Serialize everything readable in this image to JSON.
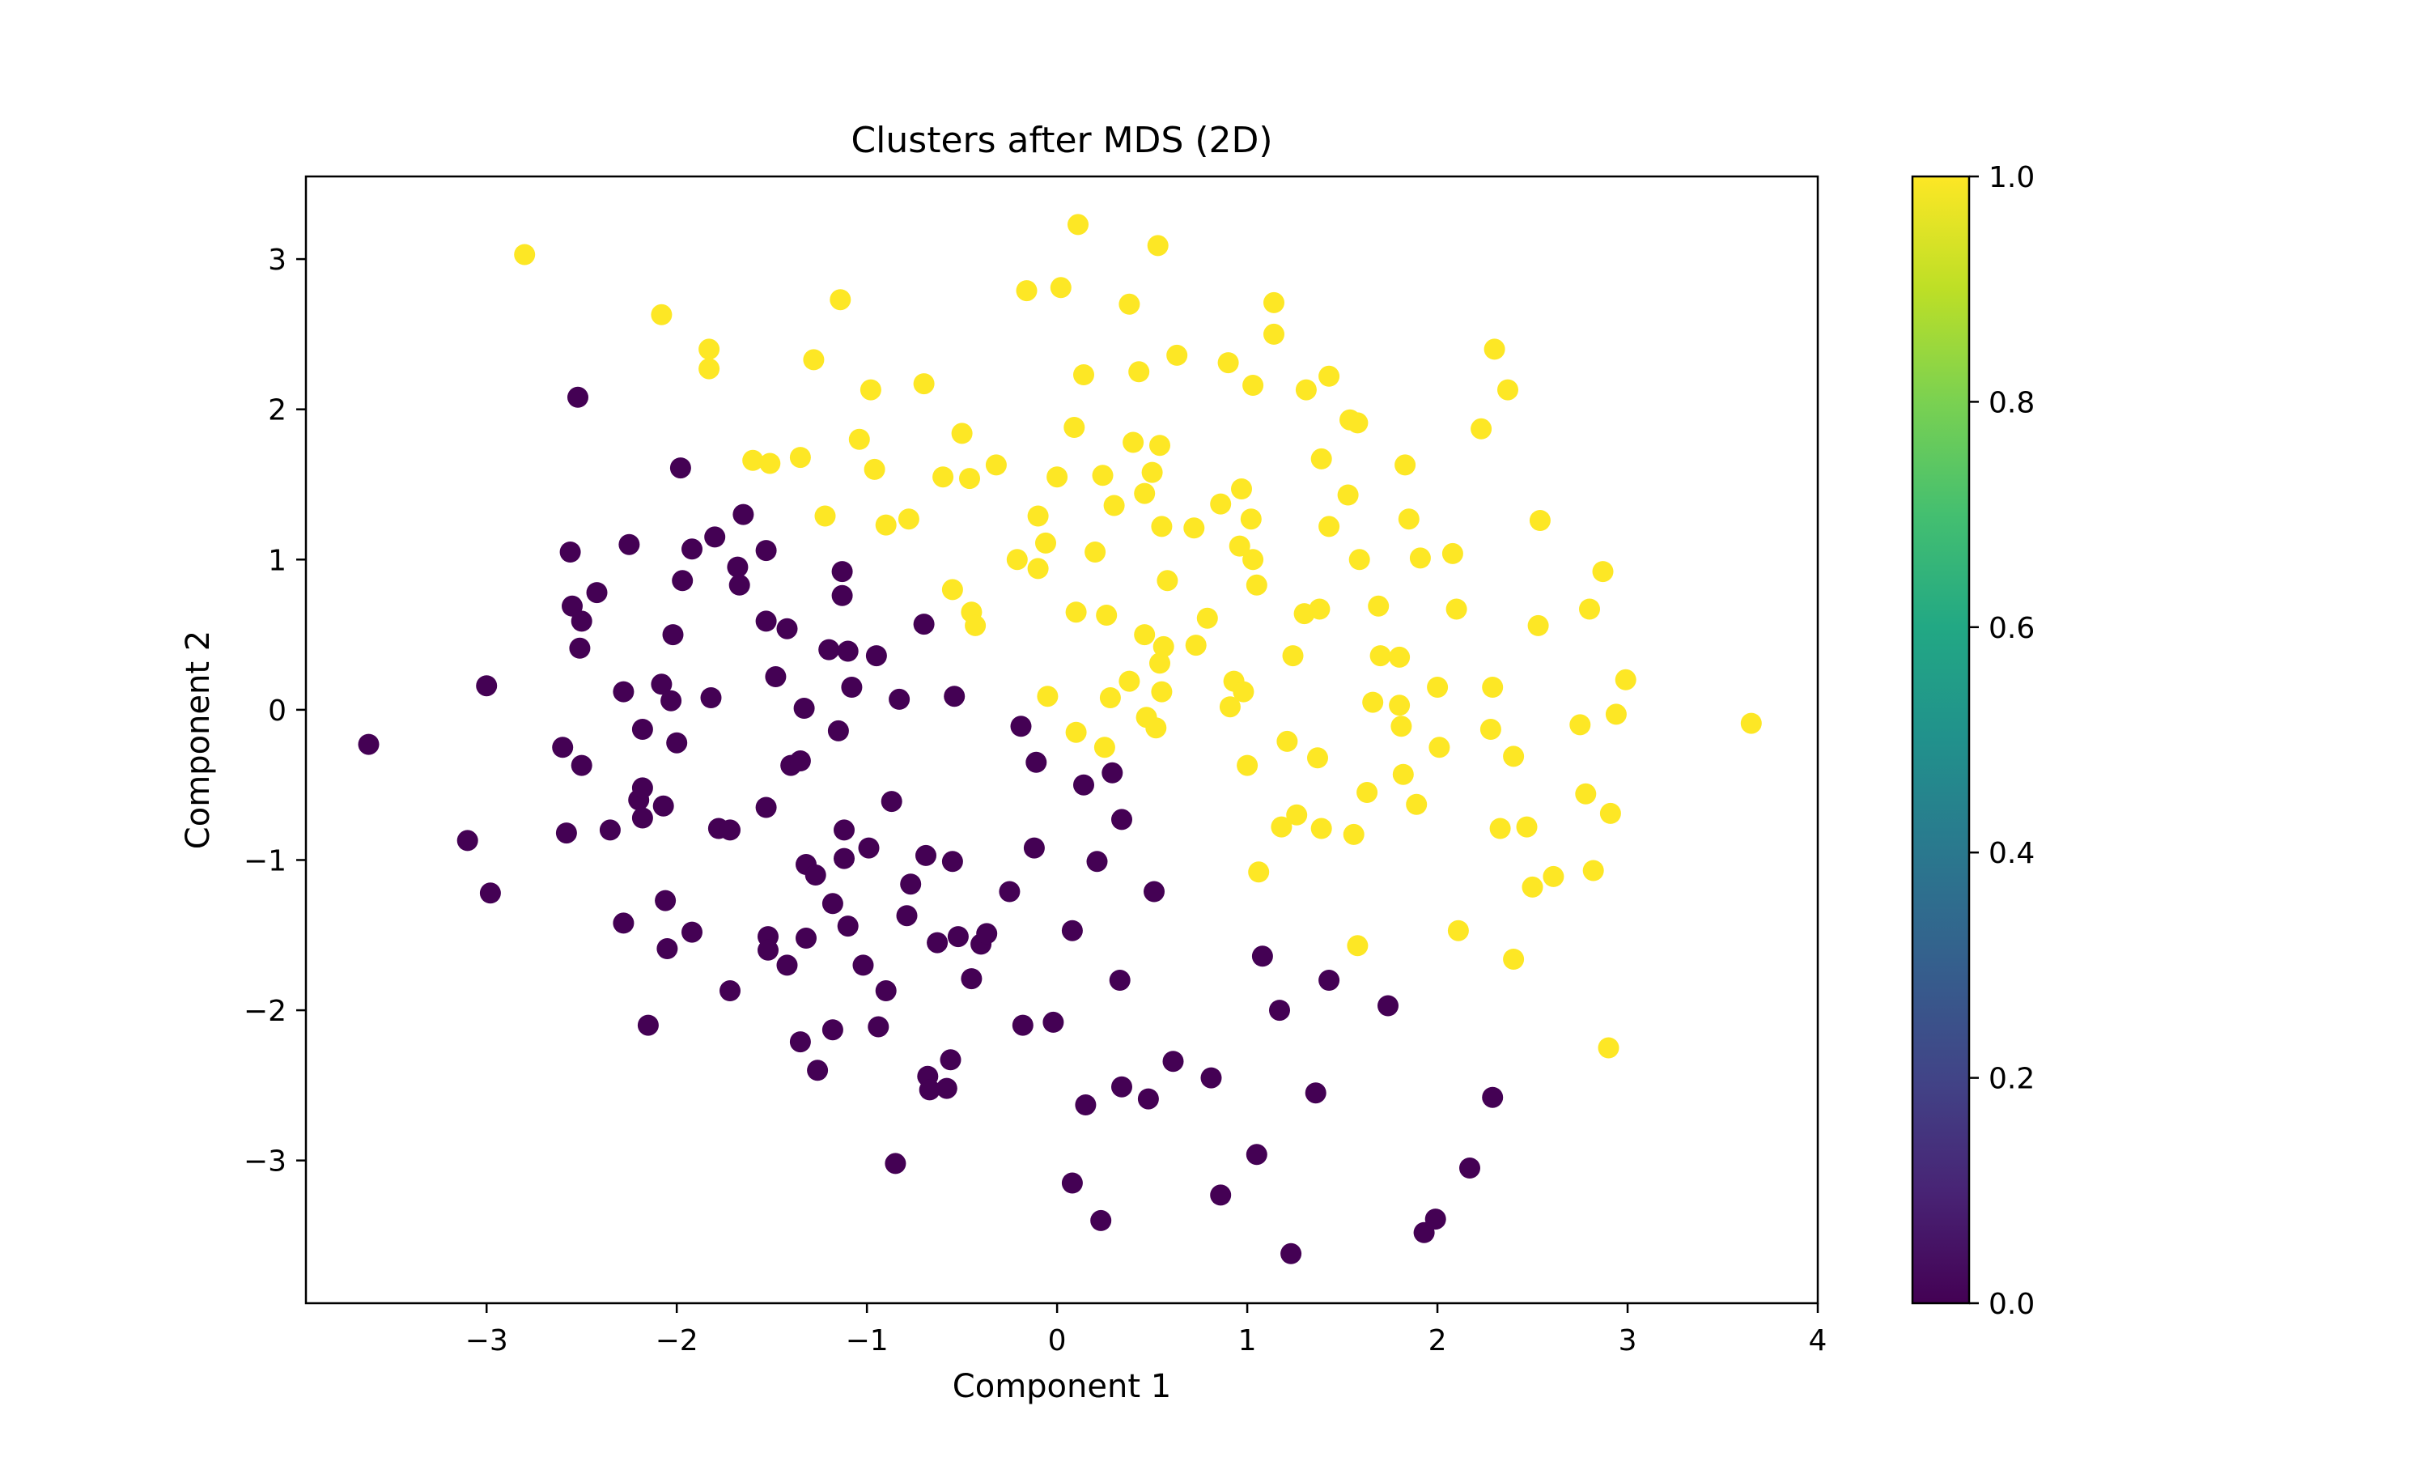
{
  "chart_data": {
    "type": "scatter",
    "title": "Clusters after MDS (2D)",
    "xlabel": "Component 1",
    "ylabel": "Component 2",
    "xlim": [
      -3.95,
      4.0
    ],
    "ylim": [
      -3.95,
      3.55
    ],
    "grid": false,
    "x_ticks": [
      -3,
      -2,
      -1,
      0,
      1,
      2,
      3,
      4
    ],
    "x_tick_labels": [
      "−3",
      "−2",
      "−1",
      "0",
      "1",
      "2",
      "3",
      "4"
    ],
    "y_ticks": [
      -3,
      -2,
      -1,
      0,
      1,
      2,
      3
    ],
    "y_tick_labels": [
      "−3",
      "−2",
      "−1",
      "0",
      "1",
      "2",
      "3"
    ],
    "colorbar": {
      "colormap": "viridis",
      "range": [
        0.0,
        1.0
      ],
      "ticks": [
        0.0,
        0.2,
        0.4,
        0.6,
        0.8,
        1.0
      ],
      "tick_labels": [
        "0.0",
        "0.2",
        "0.4",
        "0.6",
        "0.8",
        "1.0"
      ]
    },
    "colors": {
      "cluster_0": "#440154",
      "cluster_1": "#fde725"
    },
    "series": [
      {
        "label": 0.0,
        "points": [
          [
            -3.62,
            -0.23
          ],
          [
            -3.1,
            -0.87
          ],
          [
            -2.98,
            -1.22
          ],
          [
            -3.0,
            0.16
          ],
          [
            -2.6,
            -0.25
          ],
          [
            -2.58,
            -0.82
          ],
          [
            -2.56,
            1.05
          ],
          [
            -2.55,
            0.69
          ],
          [
            -2.51,
            0.41
          ],
          [
            -2.5,
            0.59
          ],
          [
            -2.5,
            -0.37
          ],
          [
            -2.52,
            2.08
          ],
          [
            -2.42,
            0.78
          ],
          [
            -2.35,
            -0.8
          ],
          [
            -2.28,
            -1.42
          ],
          [
            -2.28,
            0.12
          ],
          [
            -2.25,
            1.1
          ],
          [
            -2.2,
            -0.6
          ],
          [
            -2.18,
            -0.72
          ],
          [
            -2.18,
            -0.52
          ],
          [
            -2.18,
            -0.13
          ],
          [
            -2.15,
            -2.1
          ],
          [
            -2.08,
            0.17
          ],
          [
            -2.07,
            -0.64
          ],
          [
            -2.06,
            -1.27
          ],
          [
            -2.05,
            -1.59
          ],
          [
            -2.03,
            0.06
          ],
          [
            -2.02,
            0.5
          ],
          [
            -2.0,
            -0.22
          ],
          [
            -1.98,
            1.61
          ],
          [
            -1.97,
            0.86
          ],
          [
            -1.92,
            1.07
          ],
          [
            -1.92,
            -1.48
          ],
          [
            -1.82,
            0.08
          ],
          [
            -1.8,
            1.15
          ],
          [
            -1.78,
            -0.79
          ],
          [
            -1.72,
            -0.8
          ],
          [
            -1.72,
            -1.87
          ],
          [
            -1.68,
            0.95
          ],
          [
            -1.67,
            0.83
          ],
          [
            -1.65,
            1.3
          ],
          [
            -1.53,
            1.06
          ],
          [
            -1.53,
            0.59
          ],
          [
            -1.53,
            -0.65
          ],
          [
            -1.52,
            -1.51
          ],
          [
            -1.52,
            -1.6
          ],
          [
            -1.48,
            0.22
          ],
          [
            -1.42,
            0.54
          ],
          [
            -1.42,
            -1.7
          ],
          [
            -1.4,
            -0.37
          ],
          [
            -1.35,
            -0.34
          ],
          [
            -1.35,
            -2.21
          ],
          [
            -1.33,
            0.01
          ],
          [
            -1.32,
            -1.03
          ],
          [
            -1.32,
            -1.52
          ],
          [
            -1.27,
            -1.1
          ],
          [
            -1.26,
            -2.4
          ],
          [
            -1.2,
            0.4
          ],
          [
            -1.18,
            -1.29
          ],
          [
            -1.18,
            -2.13
          ],
          [
            -1.15,
            -0.14
          ],
          [
            -1.13,
            0.92
          ],
          [
            -1.13,
            0.76
          ],
          [
            -1.12,
            -0.8
          ],
          [
            -1.12,
            -0.99
          ],
          [
            -1.1,
            0.39
          ],
          [
            -1.1,
            -1.44
          ],
          [
            -1.08,
            0.15
          ],
          [
            -1.02,
            -1.7
          ],
          [
            -0.99,
            -0.92
          ],
          [
            -0.95,
            0.36
          ],
          [
            -0.94,
            -2.11
          ],
          [
            -0.9,
            -1.87
          ],
          [
            -0.87,
            -0.61
          ],
          [
            -0.85,
            -3.02
          ],
          [
            -0.83,
            0.07
          ],
          [
            -0.79,
            -1.37
          ],
          [
            -0.77,
            -1.16
          ],
          [
            -0.7,
            0.57
          ],
          [
            -0.69,
            -0.97
          ],
          [
            -0.68,
            -2.44
          ],
          [
            -0.67,
            -2.53
          ],
          [
            -0.63,
            -1.55
          ],
          [
            -0.58,
            -2.52
          ],
          [
            -0.56,
            -2.33
          ],
          [
            -0.55,
            -1.01
          ],
          [
            -0.54,
            0.09
          ],
          [
            -0.52,
            -1.51
          ],
          [
            -0.45,
            -1.79
          ],
          [
            -0.4,
            -1.56
          ],
          [
            -0.37,
            -1.49
          ],
          [
            -0.25,
            -1.21
          ],
          [
            -0.19,
            -0.11
          ],
          [
            -0.18,
            -2.1
          ],
          [
            -0.12,
            -0.92
          ],
          [
            -0.11,
            -0.35
          ],
          [
            -0.02,
            -2.08
          ],
          [
            0.08,
            -1.47
          ],
          [
            0.08,
            -3.15
          ],
          [
            0.14,
            -0.5
          ],
          [
            0.15,
            -2.63
          ],
          [
            0.21,
            -1.01
          ],
          [
            0.23,
            -3.4
          ],
          [
            0.29,
            -0.42
          ],
          [
            0.33,
            -1.8
          ],
          [
            0.34,
            -0.73
          ],
          [
            0.34,
            -2.51
          ],
          [
            0.48,
            -2.59
          ],
          [
            0.51,
            -1.21
          ],
          [
            0.61,
            -2.34
          ],
          [
            0.81,
            -2.45
          ],
          [
            0.86,
            -3.23
          ],
          [
            1.05,
            -2.96
          ],
          [
            1.08,
            -1.64
          ],
          [
            1.17,
            -2.0
          ],
          [
            1.23,
            -3.62
          ],
          [
            1.36,
            -2.55
          ],
          [
            1.43,
            -1.8
          ],
          [
            1.74,
            -1.97
          ],
          [
            1.93,
            -3.48
          ],
          [
            1.99,
            -3.39
          ],
          [
            2.17,
            -3.05
          ],
          [
            2.29,
            -2.58
          ]
        ]
      },
      {
        "label": 1.0,
        "points": [
          [
            -2.8,
            3.03
          ],
          [
            -2.08,
            2.63
          ],
          [
            -1.83,
            2.4
          ],
          [
            -1.83,
            2.27
          ],
          [
            -1.6,
            1.66
          ],
          [
            -1.51,
            1.64
          ],
          [
            -1.35,
            1.68
          ],
          [
            -1.28,
            2.33
          ],
          [
            -1.22,
            1.29
          ],
          [
            -1.14,
            2.73
          ],
          [
            -1.04,
            1.8
          ],
          [
            -0.98,
            2.13
          ],
          [
            -0.96,
            1.6
          ],
          [
            -0.9,
            1.23
          ],
          [
            -0.78,
            1.27
          ],
          [
            -0.7,
            2.17
          ],
          [
            -0.6,
            1.55
          ],
          [
            -0.55,
            0.8
          ],
          [
            -0.5,
            1.84
          ],
          [
            -0.46,
            1.54
          ],
          [
            -0.45,
            0.65
          ],
          [
            -0.43,
            0.56
          ],
          [
            -0.32,
            1.63
          ],
          [
            -0.21,
            1.0
          ],
          [
            -0.16,
            2.79
          ],
          [
            -0.1,
            1.29
          ],
          [
            -0.1,
            0.94
          ],
          [
            -0.06,
            1.11
          ],
          [
            -0.05,
            0.09
          ],
          [
            0.0,
            1.55
          ],
          [
            0.02,
            2.81
          ],
          [
            0.09,
            1.88
          ],
          [
            0.1,
            0.65
          ],
          [
            0.1,
            -0.15
          ],
          [
            0.11,
            3.23
          ],
          [
            0.14,
            2.23
          ],
          [
            0.2,
            1.05
          ],
          [
            0.24,
            1.56
          ],
          [
            0.25,
            -0.25
          ],
          [
            0.26,
            0.63
          ],
          [
            0.28,
            0.08
          ],
          [
            0.3,
            1.36
          ],
          [
            0.38,
            0.19
          ],
          [
            0.38,
            2.7
          ],
          [
            0.4,
            1.78
          ],
          [
            0.43,
            2.25
          ],
          [
            0.46,
            1.44
          ],
          [
            0.46,
            0.5
          ],
          [
            0.47,
            -0.05
          ],
          [
            0.5,
            1.58
          ],
          [
            0.52,
            -0.12
          ],
          [
            0.53,
            3.09
          ],
          [
            0.54,
            1.76
          ],
          [
            0.54,
            0.31
          ],
          [
            0.55,
            1.22
          ],
          [
            0.55,
            0.12
          ],
          [
            0.56,
            0.42
          ],
          [
            0.58,
            0.86
          ],
          [
            0.63,
            2.36
          ],
          [
            0.72,
            1.21
          ],
          [
            0.73,
            0.43
          ],
          [
            0.79,
            0.61
          ],
          [
            0.86,
            1.37
          ],
          [
            0.9,
            2.31
          ],
          [
            0.91,
            0.02
          ],
          [
            0.93,
            0.19
          ],
          [
            0.96,
            1.09
          ],
          [
            0.97,
            1.47
          ],
          [
            0.98,
            0.12
          ],
          [
            1.0,
            -0.37
          ],
          [
            1.02,
            1.27
          ],
          [
            1.03,
            2.16
          ],
          [
            1.03,
            1.0
          ],
          [
            1.05,
            0.83
          ],
          [
            1.06,
            -1.08
          ],
          [
            1.14,
            2.71
          ],
          [
            1.14,
            2.5
          ],
          [
            1.18,
            -0.78
          ],
          [
            1.21,
            -0.21
          ],
          [
            1.24,
            0.36
          ],
          [
            1.26,
            -0.7
          ],
          [
            1.3,
            0.64
          ],
          [
            1.31,
            2.13
          ],
          [
            1.37,
            -0.32
          ],
          [
            1.38,
            0.67
          ],
          [
            1.39,
            1.67
          ],
          [
            1.39,
            -0.79
          ],
          [
            1.43,
            2.22
          ],
          [
            1.43,
            1.22
          ],
          [
            1.53,
            1.43
          ],
          [
            1.54,
            1.93
          ],
          [
            1.56,
            -0.83
          ],
          [
            1.58,
            1.91
          ],
          [
            1.58,
            -1.57
          ],
          [
            1.59,
            1.0
          ],
          [
            1.63,
            -0.55
          ],
          [
            1.66,
            0.05
          ],
          [
            1.69,
            0.69
          ],
          [
            1.7,
            0.36
          ],
          [
            1.8,
            0.35
          ],
          [
            1.8,
            0.03
          ],
          [
            1.81,
            -0.11
          ],
          [
            1.82,
            -0.43
          ],
          [
            1.83,
            1.63
          ],
          [
            1.85,
            1.27
          ],
          [
            1.89,
            -0.63
          ],
          [
            1.91,
            1.01
          ],
          [
            2.0,
            0.15
          ],
          [
            2.01,
            -0.25
          ],
          [
            2.08,
            1.04
          ],
          [
            2.1,
            0.67
          ],
          [
            2.11,
            -1.47
          ],
          [
            2.23,
            1.87
          ],
          [
            2.28,
            -0.13
          ],
          [
            2.29,
            0.15
          ],
          [
            2.3,
            2.4
          ],
          [
            2.33,
            -0.79
          ],
          [
            2.37,
            2.13
          ],
          [
            2.4,
            -0.31
          ],
          [
            2.4,
            -1.66
          ],
          [
            2.47,
            -0.78
          ],
          [
            2.5,
            -1.18
          ],
          [
            2.53,
            0.56
          ],
          [
            2.54,
            1.26
          ],
          [
            2.61,
            -1.11
          ],
          [
            2.75,
            -0.1
          ],
          [
            2.78,
            -0.56
          ],
          [
            2.8,
            0.67
          ],
          [
            2.82,
            -1.07
          ],
          [
            2.87,
            0.92
          ],
          [
            2.9,
            -2.25
          ],
          [
            2.91,
            -0.69
          ],
          [
            2.94,
            -0.03
          ],
          [
            2.99,
            0.2
          ],
          [
            3.65,
            -0.09
          ]
        ]
      }
    ]
  }
}
